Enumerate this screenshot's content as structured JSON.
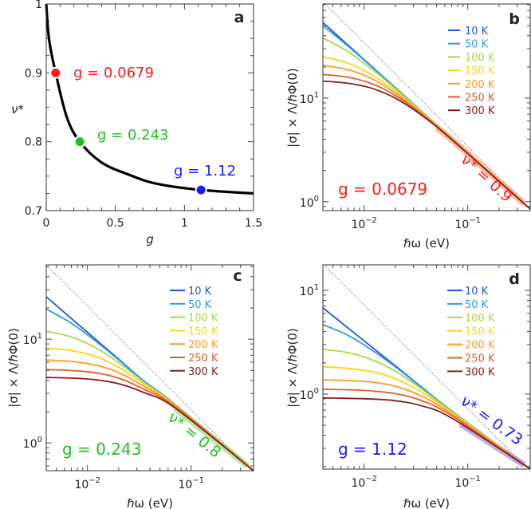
{
  "chart_data": [
    {
      "panel": "a",
      "type": "line",
      "letter": "a",
      "xlabel": "g",
      "ylabel": "ν*",
      "xscale": "linear",
      "yscale": "linear",
      "xlim": [
        0,
        1.5
      ],
      "ylim": [
        0.7,
        1
      ],
      "xticks": [
        0,
        0.5,
        1,
        1.5
      ],
      "xtick_labels": [
        "0",
        "0.5",
        "1",
        "1.5"
      ],
      "xminor_step": 0.1,
      "yticks": [
        0.7,
        0.8,
        0.9,
        1
      ],
      "ytick_labels": [
        "0.7",
        "0.8",
        "0.9",
        "1"
      ],
      "yminor_step": 0.025,
      "curve": {
        "x": [
          0,
          0.02,
          0.0679,
          0.15,
          0.243,
          0.4,
          0.6,
          0.8,
          1.12,
          1.5
        ],
        "y": [
          1,
          0.949,
          0.9,
          0.835,
          0.8,
          0.77,
          0.752,
          0.739,
          0.73,
          0.725
        ]
      },
      "points": [
        {
          "g": 0.0679,
          "nu": 0.9,
          "label": "g = 0.0679",
          "color": "#ff1a1a"
        },
        {
          "g": 0.243,
          "nu": 0.8,
          "label": "g = 0.243",
          "color": "#1ec21e"
        },
        {
          "g": 1.12,
          "nu": 0.73,
          "label": "g = 1.12",
          "color": "#1a1aff"
        }
      ]
    },
    {
      "panel": "b",
      "type": "line",
      "letter": "b",
      "xlabel": "ℏω (eV)",
      "ylabel": "|σ| × Λ/ℏΦ(0)",
      "xscale": "log",
      "yscale": "log",
      "xlim": [
        0.004,
        0.4
      ],
      "ylim": [
        0.82,
        81
      ],
      "xtick_labels": [
        {
          "value": 0.01,
          "base": "10",
          "exp": "−2"
        },
        {
          "value": 0.1,
          "base": "10",
          "exp": "−1"
        }
      ],
      "ytick_labels": [
        {
          "value": 1,
          "base": "10",
          "exp": "0"
        },
        {
          "value": 10,
          "base": "10",
          "exp": "1"
        }
      ],
      "x": [
        0.004,
        0.007,
        0.012,
        0.02,
        0.035,
        0.07,
        0.4
      ],
      "series": [
        {
          "name": "10 K",
          "color": "#1f58d6",
          "values": [
            53.6,
            32.4,
            20.0,
            12.6,
            7.6,
            4.08,
            0.85
          ]
        },
        {
          "name": "50 K",
          "color": "#2b9ce6",
          "values": [
            50.0,
            31.7,
            19.8,
            12.6,
            7.6,
            4.08,
            0.85
          ]
        },
        {
          "name": "100 K",
          "color": "#a8d848",
          "values": [
            38.0,
            28.1,
            18.9,
            12.3,
            7.55,
            4.08,
            0.85
          ]
        },
        {
          "name": "150 K",
          "color": "#ffd21a",
          "values": [
            25.1,
            21.7,
            16.7,
            11.7,
            7.41,
            4.06,
            0.85
          ]
        },
        {
          "name": "200 K",
          "color": "#ff9a1f",
          "values": [
            20.7,
            18.8,
            15.3,
            11.2,
            7.3,
            4.04,
            0.85
          ]
        },
        {
          "name": "250 K",
          "color": "#d9622a",
          "values": [
            16.9,
            15.9,
            13.7,
            10.6,
            7.13,
            4.01,
            0.85
          ]
        },
        {
          "name": "300 K",
          "color": "#8c1c1c",
          "values": [
            14.6,
            13.9,
            12.4,
            9.97,
            6.95,
            3.98,
            0.85
          ]
        }
      ],
      "reference_line": {
        "x": [
          0.0042,
          0.4
        ],
        "y": [
          81,
          0.85
        ],
        "style": "dotted"
      },
      "fit": {
        "nu_star": 0.9,
        "label": "ν* = 0.9",
        "x": [
          0.05,
          0.35
        ],
        "color": "#ffab80"
      },
      "g_label": "g = 0.0679",
      "label_color": "#ff1a1a"
    },
    {
      "panel": "c",
      "type": "line",
      "letter": "c",
      "xlabel": "ℏω (eV)",
      "ylabel": "|σ| × Λ/ℏΦ(0)",
      "xscale": "log",
      "yscale": "log",
      "xlim": [
        0.004,
        0.4
      ],
      "ylim": [
        0.54,
        52
      ],
      "xtick_labels": [
        {
          "value": 0.01,
          "base": "10",
          "exp": "−2"
        },
        {
          "value": 0.1,
          "base": "10",
          "exp": "−1"
        }
      ],
      "ytick_labels": [
        {
          "value": 1,
          "base": "10",
          "exp": "0"
        },
        {
          "value": 10,
          "base": "10",
          "exp": "1"
        }
      ],
      "x": [
        0.004,
        0.007,
        0.012,
        0.02,
        0.035,
        0.07,
        0.4
      ],
      "series": [
        {
          "name": "10 K",
          "color": "#1f58d6",
          "values": [
            25.6,
            15.8,
            9.95,
            6.41,
            3.96,
            2.36,
            0.54
          ]
        },
        {
          "name": "50 K",
          "color": "#2b9ce6",
          "values": [
            19.5,
            14.2,
            9.57,
            6.31,
            3.94,
            2.36,
            0.54
          ]
        },
        {
          "name": "100 K",
          "color": "#a8d848",
          "values": [
            11.9,
            10.5,
            8.26,
            5.94,
            3.86,
            2.34,
            0.54
          ]
        },
        {
          "name": "150 K",
          "color": "#ffd21a",
          "values": [
            8.2,
            7.76,
            6.79,
            5.36,
            3.71,
            2.31,
            0.54
          ]
        },
        {
          "name": "200 K",
          "color": "#ff9a1f",
          "values": [
            6.3,
            6.11,
            5.62,
            4.76,
            3.51,
            2.28,
            0.54
          ]
        },
        {
          "name": "250 K",
          "color": "#d9622a",
          "values": [
            5.1,
            4.99,
            4.74,
            4.21,
            3.29,
            2.23,
            0.54
          ]
        },
        {
          "name": "300 K",
          "color": "#8c1c1c",
          "values": [
            4.27,
            4.22,
            4.06,
            3.72,
            3.06,
            2.17,
            0.54
          ]
        }
      ],
      "reference_line": {
        "x": [
          0.004,
          0.4
        ],
        "y": [
          52,
          0.52
        ],
        "style": "dotted"
      },
      "fit": {
        "nu_star": 0.8,
        "label": "ν* = 0.8",
        "x": [
          0.07,
          0.35
        ],
        "color": "#a8e08c"
      },
      "g_label": "g = 0.243",
      "label_color": "#1ec21e"
    },
    {
      "panel": "d",
      "type": "line",
      "letter": "d",
      "xlabel": "ℏω (eV)",
      "ylabel": "|σ| × Λ/ℏΦ(0)",
      "xscale": "log",
      "yscale": "log",
      "xlim": [
        0.004,
        0.4
      ],
      "ylim": [
        0.189,
        17.6
      ],
      "xtick_labels": [
        {
          "value": 0.01,
          "base": "10",
          "exp": "−2"
        },
        {
          "value": 0.1,
          "base": "10",
          "exp": "−1"
        }
      ],
      "ytick_labels": [
        {
          "value": 1,
          "base": "10",
          "exp": "0"
        },
        {
          "value": 10,
          "base": "10",
          "exp": "1"
        }
      ],
      "x": [
        0.004,
        0.007,
        0.012,
        0.02,
        0.035,
        0.07,
        0.4
      ],
      "series": [
        {
          "name": "10 K",
          "color": "#1f58d6",
          "values": [
            6.78,
            4.33,
            2.81,
            1.87,
            1.19,
            0.687,
            0.19
          ]
        },
        {
          "name": "50 K",
          "color": "#2b9ce6",
          "values": [
            4.67,
            3.68,
            2.64,
            1.83,
            1.18,
            0.684,
            0.19
          ]
        },
        {
          "name": "100 K",
          "color": "#a8d848",
          "values": [
            2.7,
            2.51,
            2.13,
            1.66,
            1.14,
            0.679,
            0.19
          ]
        },
        {
          "name": "150 K",
          "color": "#ffd21a",
          "values": [
            1.83,
            1.77,
            1.64,
            1.41,
            1.06,
            0.665,
            0.19
          ]
        },
        {
          "name": "200 K",
          "color": "#ff9a1f",
          "values": [
            1.37,
            1.35,
            1.3,
            1.19,
            0.966,
            0.644,
            0.19
          ]
        },
        {
          "name": "250 K",
          "color": "#d9622a",
          "values": [
            1.11,
            1.1,
            1.07,
            1.01,
            0.873,
            0.619,
            0.19
          ]
        },
        {
          "name": "300 K",
          "color": "#8c1c1c",
          "values": [
            0.916,
            0.91,
            0.895,
            0.863,
            0.776,
            0.586,
            0.19
          ]
        }
      ],
      "reference_line": {
        "x": [
          0.0041,
          0.4
        ],
        "y": [
          17.6,
          0.18
        ],
        "style": "dotted"
      },
      "fit": {
        "nu_star": 0.73,
        "label": "ν* = 0.73",
        "x": [
          0.085,
          0.35
        ],
        "color": "#a99ae6"
      },
      "g_label": "g = 1.12",
      "label_color": "#1a1aff"
    }
  ]
}
